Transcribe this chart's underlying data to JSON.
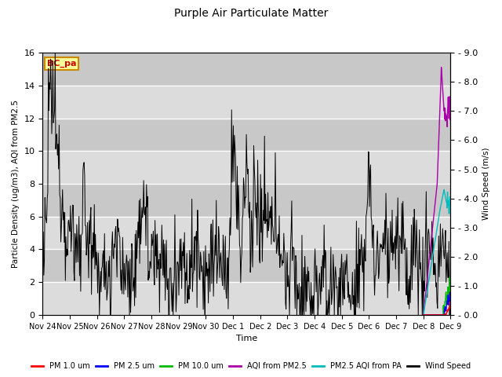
{
  "title": "Purple Air Particulate Matter",
  "ylabel_left": "Particle Density (ug/m3), AQI from PM2.5",
  "ylabel_right": "Wind Speed (m/s)",
  "xlabel": "Time",
  "annotation_text": "BC_pa",
  "ylim_left": [
    0,
    16
  ],
  "ylim_right": [
    0,
    9.0
  ],
  "yticks_left": [
    0,
    2,
    4,
    6,
    8,
    10,
    12,
    14,
    16
  ],
  "yticks_right_vals": [
    0.0,
    1.0,
    2.0,
    3.0,
    4.0,
    5.0,
    6.0,
    7.0,
    8.0,
    9.0
  ],
  "yticks_right_labels": [
    "0.0",
    "1.0",
    "2.0",
    "3.0",
    "4.0",
    "5.0",
    "6.0",
    "7.0",
    "8.0",
    "9.0"
  ],
  "xtick_labels": [
    "Nov 24",
    "Nov 25",
    "Nov 26",
    "Nov 27",
    "Nov 28",
    "Nov 29",
    "Nov 30",
    "Dec 1",
    "Dec 2",
    "Dec 3",
    "Dec 4",
    "Dec 5",
    "Dec 6",
    "Dec 7",
    "Dec 8",
    "Dec 9"
  ],
  "bg_color": "#dcdcdc",
  "legend_entries": [
    "PM 1.0 um",
    "PM 2.5 um",
    "PM 10.0 um",
    "AQI from PM2.5",
    "PM2.5 AQI from PA",
    "Wind Speed"
  ],
  "legend_colors": [
    "#ff0000",
    "#0000ff",
    "#00bb00",
    "#aa00aa",
    "#00bbbb",
    "#000000"
  ],
  "seed": 12345
}
